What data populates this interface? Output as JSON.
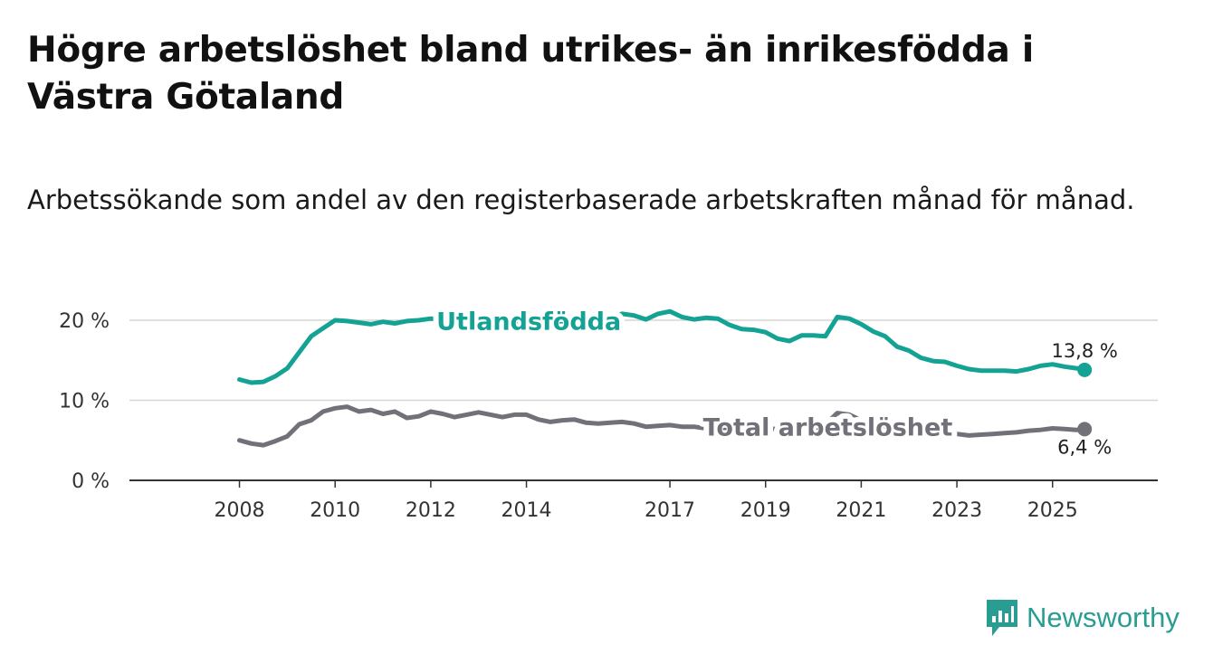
{
  "title": "Högre arbetslöshet bland utrikes- än inrikesfödda i Västra Götaland",
  "subtitle": "Arbetssökande som andel av den registerbaserade arbetskraften månad för månad.",
  "brand": {
    "name": "Newsworthy",
    "icon": "bar-chart-icon",
    "color": "#2a9d92"
  },
  "chart_data": {
    "type": "line",
    "title": "Högre arbetslöshet bland utrikes- än inrikesfödda i Västra Götaland",
    "xlabel": "",
    "ylabel": "",
    "x_ticks": [
      "2008",
      "2010",
      "2012",
      "2014",
      "2017",
      "2019",
      "2021",
      "2023",
      "2025"
    ],
    "x_tick_values": [
      2008,
      2010,
      2012,
      2014,
      2017,
      2019,
      2021,
      2023,
      2025
    ],
    "y_ticks": [
      0,
      10,
      20
    ],
    "y_tick_labels": [
      "0 %",
      "10 %",
      "20 %"
    ],
    "xlim": [
      2005.7,
      2027.2
    ],
    "ylim": [
      0,
      20.9
    ],
    "grid": true,
    "series": [
      {
        "name": "Utlandsfödda",
        "color": "#14a294",
        "end_label": "13,8 %",
        "x": [
          2008.0,
          2008.25,
          2008.5,
          2008.75,
          2009.0,
          2009.25,
          2009.5,
          2009.75,
          2010.0,
          2010.25,
          2010.5,
          2010.75,
          2011.0,
          2011.25,
          2011.5,
          2011.75,
          2012.0,
          2012.25,
          2012.5,
          2012.75,
          2013.0,
          2013.25,
          2013.5,
          2013.75,
          2014.0,
          2014.25,
          2014.5,
          2014.75,
          2015.0,
          2015.25,
          2015.5,
          2015.75,
          2016.0,
          2016.25,
          2016.5,
          2016.75,
          2017.0,
          2017.25,
          2017.5,
          2017.75,
          2018.0,
          2018.25,
          2018.5,
          2018.75,
          2019.0,
          2019.25,
          2019.5,
          2019.75,
          2020.0,
          2020.25,
          2020.5,
          2020.75,
          2021.0,
          2021.25,
          2021.5,
          2021.75,
          2022.0,
          2022.25,
          2022.5,
          2022.75,
          2023.0,
          2023.25,
          2023.5,
          2023.75,
          2024.0,
          2024.25,
          2024.5,
          2024.75,
          2025.0,
          2025.25,
          2025.5,
          2025.67
        ],
        "values": [
          12.6,
          12.2,
          12.3,
          13.0,
          14.0,
          16.0,
          18.0,
          19.0,
          20.0,
          19.9,
          19.7,
          19.5,
          19.8,
          19.6,
          19.9,
          20.0,
          20.2,
          20.1,
          20.0,
          19.9,
          20.2,
          20.3,
          20.0,
          19.9,
          20.0,
          19.9,
          19.7,
          19.9,
          20.1,
          20.2,
          20.2,
          20.3,
          20.8,
          20.6,
          20.1,
          20.8,
          21.1,
          20.4,
          20.1,
          20.3,
          20.2,
          19.4,
          18.9,
          18.8,
          18.5,
          17.7,
          17.4,
          18.1,
          18.1,
          18.0,
          20.4,
          20.2,
          19.5,
          18.6,
          18.0,
          16.7,
          16.2,
          15.3,
          14.9,
          14.8,
          14.3,
          13.9,
          13.7,
          13.7,
          13.7,
          13.6,
          13.9,
          14.3,
          14.5,
          14.2,
          14.0,
          13.8
        ]
      },
      {
        "name": "Total arbetslöshet",
        "color": "#72717a",
        "end_label": "6,4 %",
        "x": [
          2008.0,
          2008.25,
          2008.5,
          2008.75,
          2009.0,
          2009.25,
          2009.5,
          2009.75,
          2010.0,
          2010.25,
          2010.5,
          2010.75,
          2011.0,
          2011.25,
          2011.5,
          2011.75,
          2012.0,
          2012.25,
          2012.5,
          2012.75,
          2013.0,
          2013.25,
          2013.5,
          2013.75,
          2014.0,
          2014.25,
          2014.5,
          2014.75,
          2015.0,
          2015.25,
          2015.5,
          2015.75,
          2016.0,
          2016.25,
          2016.5,
          2016.75,
          2017.0,
          2017.25,
          2017.5,
          2017.75,
          2018.0,
          2018.25,
          2018.5,
          2018.75,
          2019.0,
          2019.25,
          2019.5,
          2019.75,
          2020.0,
          2020.25,
          2020.5,
          2020.75,
          2021.0,
          2021.25,
          2021.5,
          2021.75,
          2022.0,
          2022.25,
          2022.5,
          2022.75,
          2023.0,
          2023.25,
          2023.5,
          2023.75,
          2024.0,
          2024.25,
          2024.5,
          2024.75,
          2025.0,
          2025.25,
          2025.5,
          2025.67
        ],
        "values": [
          5.0,
          4.6,
          4.4,
          4.9,
          5.5,
          7.0,
          7.5,
          8.6,
          9.0,
          9.2,
          8.6,
          8.8,
          8.3,
          8.6,
          7.8,
          8.0,
          8.6,
          8.3,
          7.9,
          8.2,
          8.5,
          8.2,
          7.9,
          8.2,
          8.2,
          7.6,
          7.3,
          7.5,
          7.6,
          7.2,
          7.1,
          7.2,
          7.3,
          7.1,
          6.7,
          6.8,
          6.9,
          6.7,
          6.7,
          6.5,
          6.5,
          6.6,
          6.5,
          6.5,
          6.7,
          6.3,
          6.4,
          6.4,
          6.4,
          7.0,
          8.4,
          8.2,
          7.5,
          7.0,
          6.8,
          6.5,
          6.0,
          5.9,
          5.9,
          5.9,
          5.8,
          5.6,
          5.7,
          5.8,
          5.9,
          6.0,
          6.2,
          6.3,
          6.5,
          6.4,
          6.3,
          6.4
        ]
      }
    ]
  }
}
